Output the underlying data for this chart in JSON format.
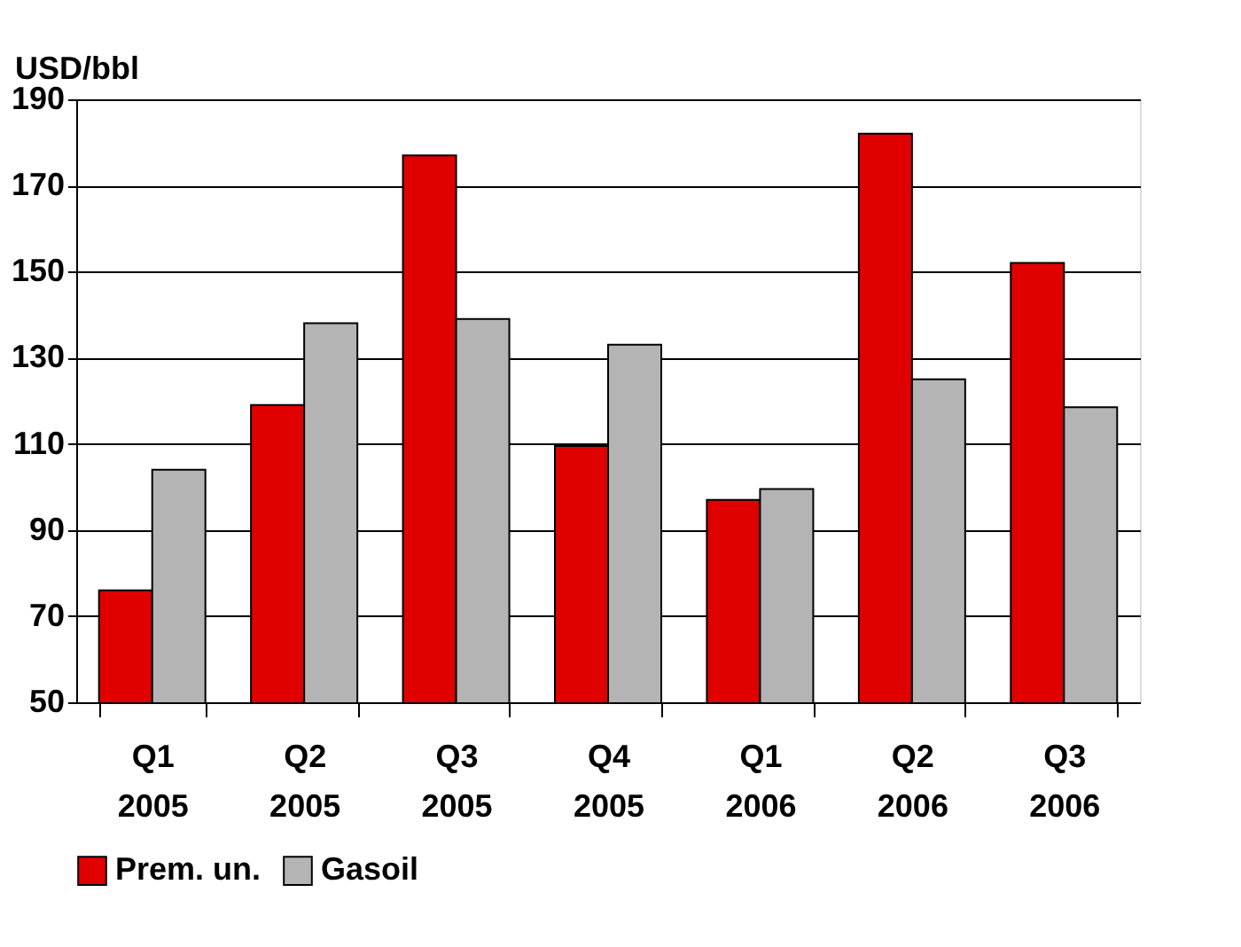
{
  "chart_data": {
    "type": "bar",
    "ylabel": "USD/bbl",
    "categories": [
      "Q1\n2005",
      "Q2\n2005",
      "Q3\n2005",
      "Q4\n2005",
      "Q1\n2006",
      "Q2\n2006",
      "Q3\n2006"
    ],
    "series": [
      {
        "name": "Prem. un.",
        "color": "#e00000",
        "values": [
          76,
          119,
          177,
          109.5,
          97,
          182,
          152
        ]
      },
      {
        "name": "Gasoil",
        "color": "#b4b4b4",
        "values": [
          104,
          138,
          139,
          133,
          99.5,
          125,
          118.5
        ]
      }
    ],
    "ylim": [
      50,
      190
    ],
    "yticks": [
      50,
      70,
      90,
      110,
      130,
      150,
      170,
      190
    ],
    "grid": "y",
    "legend": "bottom"
  }
}
